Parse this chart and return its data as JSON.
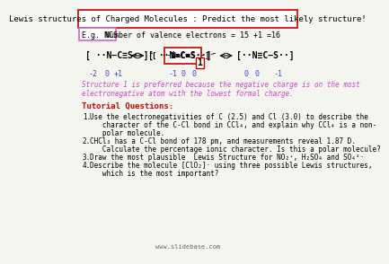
{
  "title": "Lewis structures of Charged Molecules : Predict the most likely structure!",
  "title_color": "#cc0000",
  "title_border_color": "#cc0000",
  "bg_color": "#f5f5f0",
  "eg_label": "E.g. NCS⁻",
  "eg_box_color": "#cc66cc",
  "valence_text": "Number of valence electrons = 15 +1 =16",
  "structure_note": "Structure 1 is preferred because the negative charge is on the most\nelectronegative atom with the lowest formal charge.",
  "structure_note_color": "#cc44cc",
  "tutorial_label": "Tutorial Questions:",
  "tutorial_color": "#cc0000",
  "tutorial_items": [
    "Use the electronegativities of C (2.5) and Cl (3.0) to describe the\n   character of the C-Cl bond in CCl₄, and explain why CCl₄ is a non-\n   polar molecule.",
    "CHCl₃ has a C-Cl bond of 178 pm, and measurements reveal 1.87 D.\n   Calculate the percentage ionic character. Is this a polar molecule?",
    "Draw the most plausible Lewis Structure for NO₂⁺, H₂SO₄ and SO₄²⁻",
    "Describe the molecule [ClO₂]⁻ using three possible Lewis structures,\n   which is the most important?"
  ],
  "website": "www.slidebase.com"
}
